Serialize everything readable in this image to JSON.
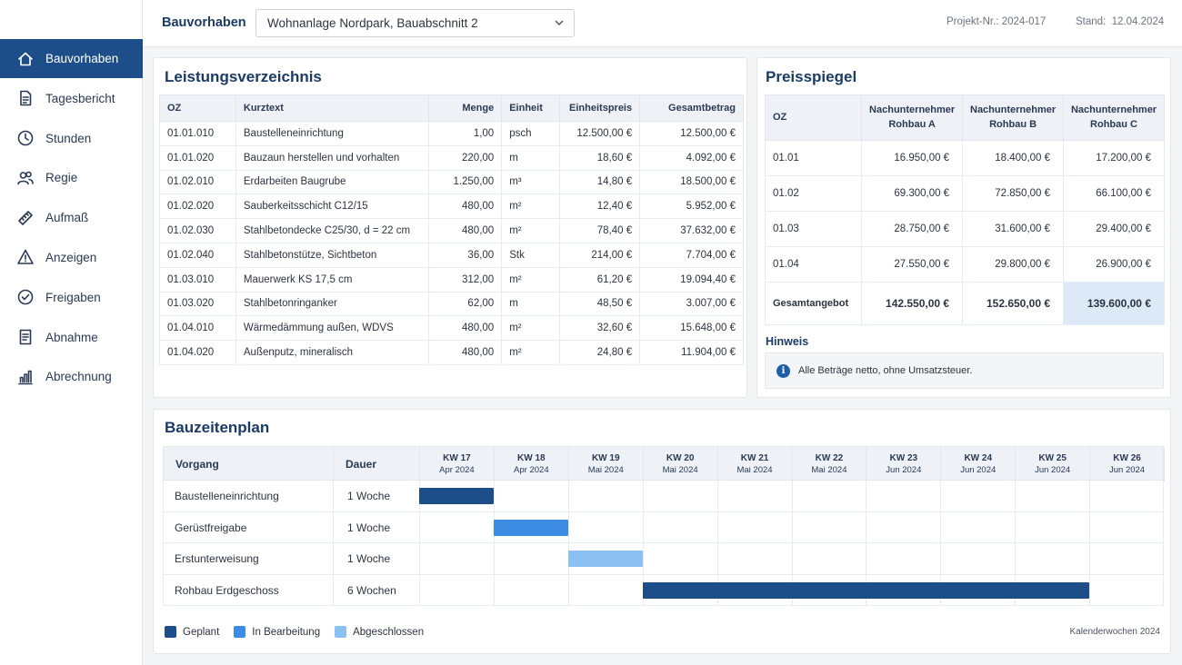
{
  "colors": {
    "primary": "#1d4e89",
    "progress": "#3d8ce3",
    "done": "#8cc0f2",
    "best": "#dce9f7"
  },
  "sidebar": {
    "items": [
      {
        "label": "Bauvorhaben",
        "icon": "home-icon",
        "active": true
      },
      {
        "label": "Tagesbericht",
        "icon": "document-icon"
      },
      {
        "label": "Stunden",
        "icon": "clock-icon"
      },
      {
        "label": "Regie",
        "icon": "users-icon"
      },
      {
        "label": "Aufmaß",
        "icon": "ruler-icon"
      },
      {
        "label": "Anzeigen",
        "icon": "warning-icon"
      },
      {
        "label": "Freigaben",
        "icon": "check-circle-icon"
      },
      {
        "label": "Abnahme",
        "icon": "clipboard-icon"
      },
      {
        "label": "Abrechnung",
        "icon": "bar-chart-icon"
      }
    ]
  },
  "header": {
    "title": "Bauvorhaben",
    "project_select": "Wohnanlage Nordpark, Bauabschnitt 2",
    "project_nr_label": "Projekt-Nr.:",
    "project_nr": "2024-017",
    "stand_label": "Stand:",
    "stand": "12.04.2024"
  },
  "lv": {
    "title": "Leistungsverzeichnis",
    "columns": [
      "OZ",
      "Kurztext",
      "Menge",
      "Einheit",
      "Einheitspreis",
      "Gesamtbetrag"
    ],
    "rows": [
      [
        "01.01.010",
        "Baustelleneinrichtung",
        "1,00",
        "psch",
        "12.500,00 €",
        "12.500,00 €"
      ],
      [
        "01.01.020",
        "Bauzaun herstellen und vorhalten",
        "220,00",
        "m",
        "18,60 €",
        "4.092,00 €"
      ],
      [
        "01.02.010",
        "Erdarbeiten Baugrube",
        "1.250,00",
        "m³",
        "14,80 €",
        "18.500,00 €"
      ],
      [
        "01.02.020",
        "Sauberkeitsschicht C12/15",
        "480,00",
        "m²",
        "12,40 €",
        "5.952,00 €"
      ],
      [
        "01.02.030",
        "Stahlbetondecke C25/30, d = 22 cm",
        "480,00",
        "m²",
        "78,40 €",
        "37.632,00 €"
      ],
      [
        "01.02.040",
        "Stahlbetonstütze, Sichtbeton",
        "36,00",
        "Stk",
        "214,00 €",
        "7.704,00 €"
      ],
      [
        "01.03.010",
        "Mauerwerk KS 17,5 cm",
        "312,00",
        "m²",
        "61,20 €",
        "19.094,40 €"
      ],
      [
        "01.03.020",
        "Stahlbetonringanker",
        "62,00",
        "m",
        "48,50 €",
        "3.007,00 €"
      ],
      [
        "01.04.010",
        "Wärmedämmung außen, WDVS",
        "480,00",
        "m²",
        "32,60 €",
        "15.648,00 €"
      ],
      [
        "01.04.020",
        "Außenputz, mineralisch",
        "480,00",
        "m²",
        "24,80 €",
        "11.904,00 €"
      ]
    ]
  },
  "ps": {
    "title": "Preisspiegel",
    "oz_header": "OZ",
    "bidders": [
      [
        "Nachunternehmer",
        "Rohbau A"
      ],
      [
        "Nachunternehmer",
        "Rohbau B"
      ],
      [
        "Nachunternehmer",
        "Rohbau C"
      ]
    ],
    "rows": [
      [
        "01.01",
        "16.950,00 €",
        "18.400,00 €",
        "17.200,00 €"
      ],
      [
        "01.02",
        "69.300,00 €",
        "72.850,00 €",
        "66.100,00 €"
      ],
      [
        "01.03",
        "28.750,00 €",
        "31.600,00 €",
        "29.400,00 €"
      ],
      [
        "01.04",
        "27.550,00 €",
        "29.800,00 €",
        "26.900,00 €"
      ]
    ],
    "total": [
      "Gesamtangebot",
      "142.550,00 €",
      "152.650,00 €",
      "139.600,00 €"
    ],
    "best_index": 2,
    "hinweis_label": "Hinweis",
    "hinweis_text": "Alle Beträge netto, ohne Umsatzsteuer."
  },
  "bzp": {
    "title": "Bauzeitenplan",
    "col_vorgang": "Vorgang",
    "col_dauer": "Dauer",
    "weeks": [
      {
        "kw": "KW 17",
        "month": "Apr 2024"
      },
      {
        "kw": "KW 18",
        "month": "Apr 2024"
      },
      {
        "kw": "KW 19",
        "month": "Mai 2024"
      },
      {
        "kw": "KW 20",
        "month": "Mai 2024"
      },
      {
        "kw": "KW 21",
        "month": "Mai 2024"
      },
      {
        "kw": "KW 22",
        "month": "Mai 2024"
      },
      {
        "kw": "KW 23",
        "month": "Jun 2024"
      },
      {
        "kw": "KW 24",
        "month": "Jun 2024"
      },
      {
        "kw": "KW 25",
        "month": "Jun 2024"
      },
      {
        "kw": "KW 26",
        "month": "Jun 2024"
      }
    ],
    "tasks": [
      {
        "name": "Baustelleneinrichtung",
        "dauer": "1 Woche",
        "start": 0,
        "weeks": 1,
        "status": "geplant"
      },
      {
        "name": "Gerüstfreigabe",
        "dauer": "1 Woche",
        "start": 1,
        "weeks": 1,
        "status": "in_bearbeitung"
      },
      {
        "name": "Erstunterweisung",
        "dauer": "1 Woche",
        "start": 2,
        "weeks": 1,
        "status": "abgeschlossen"
      },
      {
        "name": "Rohbau Erdgeschoss",
        "dauer": "6 Wochen",
        "start": 3,
        "weeks": 6,
        "status": "geplant"
      }
    ],
    "legend": [
      {
        "label": "Geplant",
        "status": "geplant"
      },
      {
        "label": "In Bearbeitung",
        "status": "in_bearbeitung"
      },
      {
        "label": "Abgeschlossen",
        "status": "abgeschlossen"
      }
    ],
    "footnote": "Kalenderwochen 2024"
  }
}
